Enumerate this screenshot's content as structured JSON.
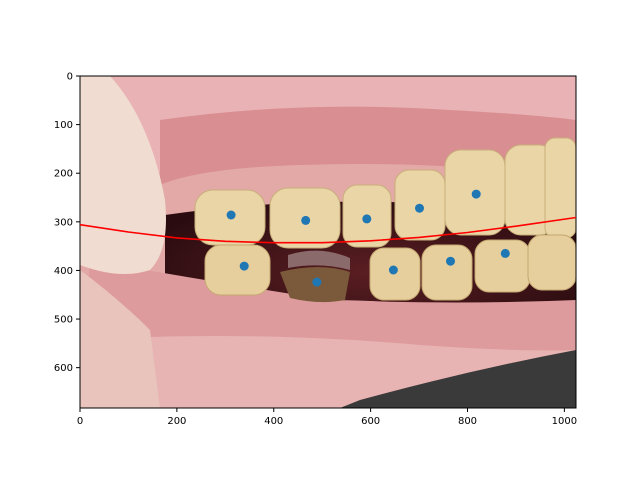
{
  "chart_data": {
    "type": "scatter",
    "title": "",
    "xlabel": "",
    "ylabel": "",
    "xlim": [
      0,
      1024
    ],
    "ylim": [
      683,
      0
    ],
    "y_inverted": true,
    "grid": false,
    "background": "photo of teeth (intraoral side view)",
    "xticks": [
      0,
      200,
      400,
      600,
      800,
      1000
    ],
    "yticks": [
      0,
      100,
      200,
      300,
      400,
      500,
      600
    ],
    "xtick_labels": [
      "0",
      "200",
      "400",
      "600",
      "800",
      "1000"
    ],
    "ytick_labels": [
      "0",
      "100",
      "200",
      "300",
      "400",
      "500",
      "600"
    ],
    "points": {
      "color": "#1f77b4",
      "x": [
        312,
        466,
        592,
        701,
        818,
        339,
        489,
        647,
        765,
        878
      ],
      "y": [
        286,
        297,
        294,
        272,
        243,
        391,
        424,
        399,
        381,
        365
      ]
    },
    "curve": {
      "color": "#ff0000",
      "type": "quadratic",
      "x": [
        0,
        100,
        200,
        300,
        400,
        500,
        600,
        700,
        800,
        900,
        1024
      ],
      "y": [
        306,
        321,
        333,
        340,
        343,
        343,
        339,
        332,
        322,
        309,
        291
      ]
    }
  }
}
